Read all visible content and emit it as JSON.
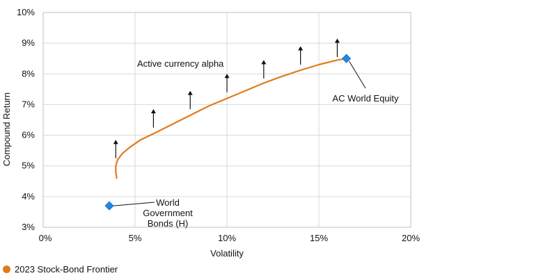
{
  "chart_data": {
    "type": "line",
    "xlabel": "Volatility",
    "ylabel": "Compound Return",
    "xlim": [
      0,
      20
    ],
    "ylim": [
      3,
      10
    ],
    "x_ticks": [
      0,
      5,
      10,
      15,
      20
    ],
    "x_tick_labels": [
      "0%",
      "5%",
      "10%",
      "15%",
      "20%"
    ],
    "y_ticks": [
      3,
      4,
      5,
      6,
      7,
      8,
      9,
      10
    ],
    "y_tick_labels": [
      "3%",
      "4%",
      "5%",
      "6%",
      "7%",
      "8%",
      "9%",
      "10%"
    ],
    "grid": true,
    "legend_position": "bottom-left",
    "series": [
      {
        "name": "2023 Stock-Bond Frontier",
        "color": "#E07B1C",
        "x": [
          4.0,
          3.95,
          3.95,
          4.05,
          4.3,
          4.7,
          5.3,
          6.0,
          7.0,
          8.0,
          9.0,
          10.0,
          11.0,
          12.0,
          13.0,
          14.0,
          15.0,
          16.0,
          16.5
        ],
        "y": [
          4.6,
          4.8,
          5.0,
          5.2,
          5.4,
          5.6,
          5.85,
          6.05,
          6.35,
          6.65,
          6.95,
          7.2,
          7.45,
          7.7,
          7.92,
          8.12,
          8.3,
          8.45,
          8.5
        ]
      }
    ],
    "points": [
      {
        "label": "World Government Bonds (H)",
        "label_lines": [
          "World",
          "Government",
          "Bonds (H)"
        ],
        "x": 3.6,
        "y": 3.7,
        "color": "#1E88E5"
      },
      {
        "label": "AC World Equity",
        "label_lines": [
          "AC World Equity"
        ],
        "x": 16.5,
        "y": 8.5,
        "color": "#1E88E5"
      }
    ],
    "arrows": {
      "label": "Active currency alpha",
      "items": [
        {
          "x": 3.95,
          "y0": 5.25,
          "y1": 5.85
        },
        {
          "x": 6.0,
          "y0": 6.25,
          "y1": 6.85
        },
        {
          "x": 8.0,
          "y0": 6.85,
          "y1": 7.45
        },
        {
          "x": 10.0,
          "y0": 7.4,
          "y1": 8.0
        },
        {
          "x": 12.0,
          "y0": 7.85,
          "y1": 8.45
        },
        {
          "x": 14.0,
          "y0": 8.3,
          "y1": 8.9
        },
        {
          "x": 16.0,
          "y0": 8.55,
          "y1": 9.15
        }
      ]
    }
  }
}
